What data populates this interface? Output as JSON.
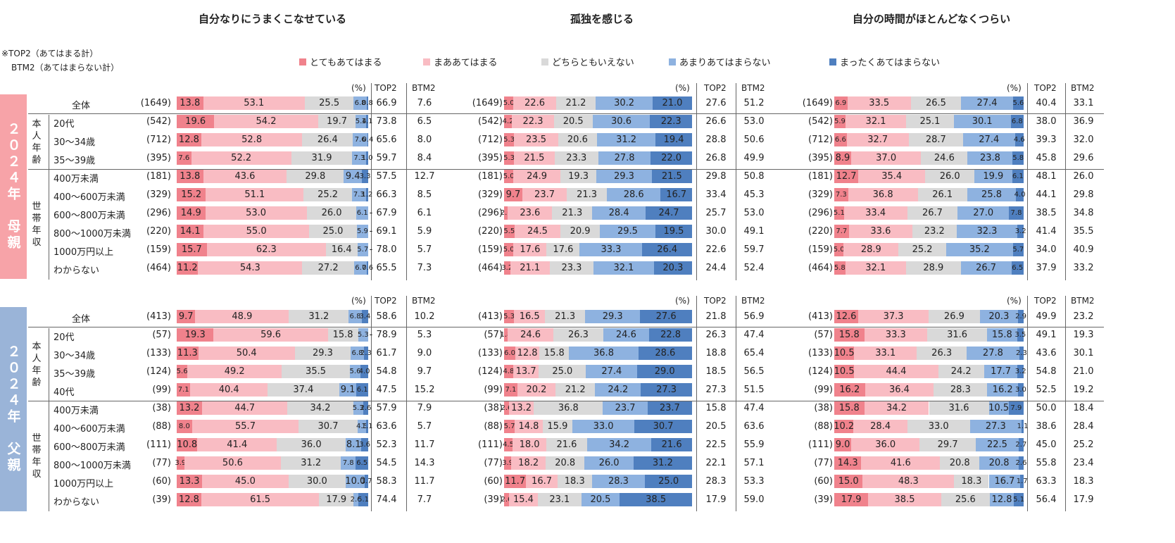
{
  "titles": [
    "自分なりにうまくこなせている",
    "孤独を感じる",
    "自分の時間がほとんどなくつらい"
  ],
  "note": {
    "line1": "※TOP2（あてはまる計）",
    "line2": "BTM2（あてはまらない計）"
  },
  "legend": [
    {
      "label": "とてもあてはまる",
      "color": "#f0828c"
    },
    {
      "label": "まああてはまる",
      "color": "#f9bcc3"
    },
    {
      "label": "どちらともいえない",
      "color": "#d9d9d9"
    },
    {
      "label": "あまりあてはまらない",
      "color": "#8eb2e0"
    },
    {
      "label": "まったくあてはまらない",
      "color": "#4f7fbf"
    }
  ],
  "headers": {
    "percent": "(%)",
    "top2": "TOP2",
    "btm2": "BTM2"
  },
  "sections": [
    {
      "label": "２０２４年　母親",
      "color": "#f7a3a8",
      "subgroups": [
        {
          "label": "本人年齢",
          "rows": [
            1,
            2,
            3
          ]
        },
        {
          "label": "世帯年収",
          "rows": [
            4,
            5,
            6,
            7,
            8,
            9
          ]
        }
      ],
      "rows": [
        {
          "label": "全体",
          "n": "(1649)",
          "p": [
            {
              "v": [
                13.8,
                53.1,
                25.5,
                6.8,
                0.8
              ],
              "t": "66.9",
              "b": "7.6"
            },
            {
              "v": [
                5.0,
                22.6,
                21.2,
                30.2,
                21.0
              ],
              "t": "27.6",
              "b": "51.2"
            },
            {
              "v": [
                6.9,
                33.5,
                26.5,
                27.4,
                5.6
              ],
              "t": "40.4",
              "b": "33.1"
            }
          ]
        },
        {
          "label": "20代",
          "n": "(542)",
          "p": [
            {
              "v": [
                19.6,
                54.2,
                19.7,
                5.4,
                1.1
              ],
              "t": "73.8",
              "b": "6.5"
            },
            {
              "v": [
                4.2,
                22.3,
                20.5,
                30.6,
                22.3
              ],
              "t": "26.6",
              "b": "53.0"
            },
            {
              "v": [
                5.9,
                32.1,
                25.1,
                30.1,
                6.8
              ],
              "t": "38.0",
              "b": "36.9"
            }
          ]
        },
        {
          "label": "30～34歳",
          "n": "(712)",
          "p": [
            {
              "v": [
                12.8,
                52.8,
                26.4,
                7.6,
                0.4
              ],
              "t": "65.6",
              "b": "8.0"
            },
            {
              "v": [
                5.3,
                23.5,
                20.6,
                31.2,
                19.4
              ],
              "t": "28.8",
              "b": "50.6"
            },
            {
              "v": [
                6.6,
                32.7,
                28.7,
                27.4,
                4.6
              ],
              "t": "39.3",
              "b": "32.0"
            }
          ]
        },
        {
          "label": "35～39歳",
          "n": "(395)",
          "p": [
            {
              "v": [
                7.6,
                52.2,
                31.9,
                7.3,
                1.0
              ],
              "t": "59.7",
              "b": "8.4"
            },
            {
              "v": [
                5.3,
                21.5,
                23.3,
                27.8,
                22.0
              ],
              "t": "26.8",
              "b": "49.9"
            },
            {
              "v": [
                8.9,
                37.0,
                24.6,
                23.8,
                5.8
              ],
              "t": "45.8",
              "b": "29.6"
            }
          ]
        },
        {
          "label": "400万未満",
          "n": "(181)",
          "p": [
            {
              "v": [
                13.8,
                43.6,
                29.8,
                9.4,
                3.3
              ],
              "t": "57.5",
              "b": "12.7"
            },
            {
              "v": [
                5.0,
                24.9,
                19.3,
                29.3,
                21.5
              ],
              "t": "29.8",
              "b": "50.8"
            },
            {
              "v": [
                12.7,
                35.4,
                26.0,
                19.9,
                6.1
              ],
              "t": "48.1",
              "b": "26.0"
            }
          ]
        },
        {
          "label": "400～600万未満",
          "n": "(329)",
          "p": [
            {
              "v": [
                15.2,
                51.1,
                25.2,
                7.3,
                1.2
              ],
              "t": "66.3",
              "b": "8.5"
            },
            {
              "v": [
                9.7,
                23.7,
                21.3,
                28.6,
                16.7
              ],
              "t": "33.4",
              "b": "45.3"
            },
            {
              "v": [
                7.3,
                36.8,
                26.1,
                25.8,
                4.0
              ],
              "t": "44.1",
              "b": "29.8"
            }
          ]
        },
        {
          "label": "600～800万未満",
          "n": "(296)",
          "p": [
            {
              "v": [
                14.9,
                53.0,
                26.0,
                6.1,
                0
              ],
              "t": "67.9",
              "b": "6.1"
            },
            {
              "v": [
                2.0,
                23.6,
                21.3,
                28.4,
                24.7
              ],
              "t": "25.7",
              "b": "53.0"
            },
            {
              "v": [
                5.1,
                33.4,
                26.7,
                27.0,
                7.8
              ],
              "t": "38.5",
              "b": "34.8"
            }
          ]
        },
        {
          "label": "800～1000万未満",
          "n": "(220)",
          "p": [
            {
              "v": [
                14.1,
                55.0,
                25.0,
                5.9,
                0
              ],
              "t": "69.1",
              "b": "5.9"
            },
            {
              "v": [
                5.5,
                24.5,
                20.9,
                29.5,
                19.5
              ],
              "t": "30.0",
              "b": "49.1"
            },
            {
              "v": [
                7.7,
                33.6,
                23.2,
                32.3,
                3.2
              ],
              "t": "41.4",
              "b": "35.5"
            }
          ]
        },
        {
          "label": "1000万円以上",
          "n": "(159)",
          "p": [
            {
              "v": [
                15.7,
                62.3,
                16.4,
                5.7,
                0
              ],
              "t": "78.0",
              "b": "5.7"
            },
            {
              "v": [
                5.0,
                17.6,
                17.6,
                33.3,
                26.4
              ],
              "t": "22.6",
              "b": "59.7"
            },
            {
              "v": [
                5.0,
                28.9,
                25.2,
                35.2,
                5.7
              ],
              "t": "34.0",
              "b": "40.9"
            }
          ]
        },
        {
          "label": "わからない",
          "n": "(464)",
          "p": [
            {
              "v": [
                11.2,
                54.3,
                27.2,
                6.7,
                0.6
              ],
              "t": "65.5",
              "b": "7.3"
            },
            {
              "v": [
                3.2,
                21.1,
                23.3,
                32.1,
                20.3
              ],
              "t": "24.4",
              "b": "52.4"
            },
            {
              "v": [
                5.8,
                32.1,
                28.9,
                26.7,
                6.5
              ],
              "t": "37.9",
              "b": "33.2"
            }
          ]
        }
      ]
    },
    {
      "label": "２０２４年　父親",
      "color": "#9ab4d8",
      "subgroups": [
        {
          "label": "本人年齢",
          "rows": [
            1,
            2,
            3,
            4
          ]
        },
        {
          "label": "世帯年収",
          "rows": [
            5,
            6,
            7,
            8,
            9,
            10
          ]
        }
      ],
      "rows": [
        {
          "label": "全体",
          "n": "(413)",
          "p": [
            {
              "v": [
                9.7,
                48.9,
                31.2,
                6.8,
                3.4
              ],
              "t": "58.6",
              "b": "10.2"
            },
            {
              "v": [
                5.3,
                16.5,
                21.3,
                29.3,
                27.6
              ],
              "t": "21.8",
              "b": "56.9"
            },
            {
              "v": [
                12.6,
                37.3,
                26.9,
                20.3,
                2.9
              ],
              "t": "49.9",
              "b": "23.2"
            }
          ]
        },
        {
          "label": "20代",
          "n": "(57)",
          "p": [
            {
              "v": [
                19.3,
                59.6,
                15.8,
                5.3,
                0
              ],
              "t": "78.9",
              "b": "5.3"
            },
            {
              "v": [
                1.8,
                24.6,
                26.3,
                24.6,
                22.8
              ],
              "t": "26.3",
              "b": "47.4"
            },
            {
              "v": [
                15.8,
                33.3,
                31.6,
                15.8,
                3.5
              ],
              "t": "49.1",
              "b": "19.3"
            }
          ]
        },
        {
          "label": "30～34歳",
          "n": "(133)",
          "p": [
            {
              "v": [
                11.3,
                50.4,
                29.3,
                6.8,
                2.3
              ],
              "t": "61.7",
              "b": "9.0"
            },
            {
              "v": [
                6.0,
                12.8,
                15.8,
                36.8,
                28.6
              ],
              "t": "18.8",
              "b": "65.4"
            },
            {
              "v": [
                10.5,
                33.1,
                26.3,
                27.8,
                2.3
              ],
              "t": "43.6",
              "b": "30.1"
            }
          ]
        },
        {
          "label": "35～39歳",
          "n": "(124)",
          "p": [
            {
              "v": [
                5.6,
                49.2,
                35.5,
                5.6,
                4.0
              ],
              "t": "54.8",
              "b": "9.7"
            },
            {
              "v": [
                4.8,
                13.7,
                25.0,
                27.4,
                29.0
              ],
              "t": "18.5",
              "b": "56.5"
            },
            {
              "v": [
                10.5,
                44.4,
                24.2,
                17.7,
                3.2
              ],
              "t": "54.8",
              "b": "21.0"
            }
          ]
        },
        {
          "label": "40代",
          "n": "(99)",
          "p": [
            {
              "v": [
                7.1,
                40.4,
                37.4,
                9.1,
                6.1
              ],
              "t": "47.5",
              "b": "15.2"
            },
            {
              "v": [
                7.1,
                20.2,
                21.2,
                24.2,
                27.3
              ],
              "t": "27.3",
              "b": "51.5"
            },
            {
              "v": [
                16.2,
                36.4,
                28.3,
                16.2,
                3.0
              ],
              "t": "52.5",
              "b": "19.2"
            }
          ]
        },
        {
          "label": "400万未満",
          "n": "(38)",
          "p": [
            {
              "v": [
                13.2,
                44.7,
                34.2,
                5.3,
                2.6
              ],
              "t": "57.9",
              "b": "7.9"
            },
            {
              "v": [
                2.6,
                13.2,
                36.8,
                23.7,
                23.7
              ],
              "t": "15.8",
              "b": "47.4"
            },
            {
              "v": [
                15.8,
                34.2,
                31.6,
                10.5,
                7.9
              ],
              "t": "50.0",
              "b": "18.4"
            }
          ]
        },
        {
          "label": "400～600万未満",
          "n": "(88)",
          "p": [
            {
              "v": [
                8.0,
                55.7,
                30.7,
                4.5,
                1.1
              ],
              "t": "63.6",
              "b": "5.7"
            },
            {
              "v": [
                5.7,
                14.8,
                15.9,
                33.0,
                30.7
              ],
              "t": "20.5",
              "b": "63.6"
            },
            {
              "v": [
                10.2,
                28.4,
                33.0,
                27.3,
                1.1
              ],
              "t": "38.6",
              "b": "28.4"
            }
          ]
        },
        {
          "label": "600～800万未満",
          "n": "(111)",
          "p": [
            {
              "v": [
                10.8,
                41.4,
                36.0,
                8.1,
                3.6
              ],
              "t": "52.3",
              "b": "11.7"
            },
            {
              "v": [
                4.5,
                18.0,
                21.6,
                34.2,
                21.6
              ],
              "t": "22.5",
              "b": "55.9"
            },
            {
              "v": [
                9.0,
                36.0,
                29.7,
                22.5,
                2.7
              ],
              "t": "45.0",
              "b": "25.2"
            }
          ]
        },
        {
          "label": "800～1000万未満",
          "n": "(77)",
          "p": [
            {
              "v": [
                3.9,
                50.6,
                31.2,
                7.8,
                6.5
              ],
              "t": "54.5",
              "b": "14.3"
            },
            {
              "v": [
                3.9,
                18.2,
                20.8,
                26.0,
                31.2
              ],
              "t": "22.1",
              "b": "57.1"
            },
            {
              "v": [
                14.3,
                41.6,
                20.8,
                20.8,
                2.6
              ],
              "t": "55.8",
              "b": "23.4"
            }
          ]
        },
        {
          "label": "1000万円以上",
          "n": "(60)",
          "p": [
            {
              "v": [
                13.3,
                45.0,
                30.0,
                10.0,
                1.7
              ],
              "t": "58.3",
              "b": "11.7"
            },
            {
              "v": [
                11.7,
                16.7,
                18.3,
                28.3,
                25.0
              ],
              "t": "28.3",
              "b": "53.3"
            },
            {
              "v": [
                15.0,
                48.3,
                18.3,
                16.7,
                1.7
              ],
              "t": "63.3",
              "b": "18.3"
            }
          ]
        },
        {
          "label": "わからない",
          "n": "(39)",
          "p": [
            {
              "v": [
                12.8,
                61.5,
                17.9,
                2.6,
                5.1
              ],
              "t": "74.4",
              "b": "7.7"
            },
            {
              "v": [
                2.6,
                15.4,
                23.1,
                20.5,
                38.5
              ],
              "t": "17.9",
              "b": "59.0"
            },
            {
              "v": [
                17.9,
                38.5,
                25.6,
                12.8,
                5.1
              ],
              "t": "56.4",
              "b": "17.9"
            }
          ]
        }
      ]
    }
  ],
  "chart_data": {
    "type": "stacked-bar",
    "orientation": "horizontal",
    "unit": "%",
    "categories": [
      "とてもあてはまる",
      "まああてはまる",
      "どちらともいえない",
      "あまりあてはまらない",
      "まったくあてはまらない"
    ],
    "panels": [
      "自分なりにうまくこなせている",
      "孤独を感じる",
      "自分の時間がほとんどなくつらい"
    ],
    "note": "series values are listed per row in sections[].rows[].p"
  }
}
